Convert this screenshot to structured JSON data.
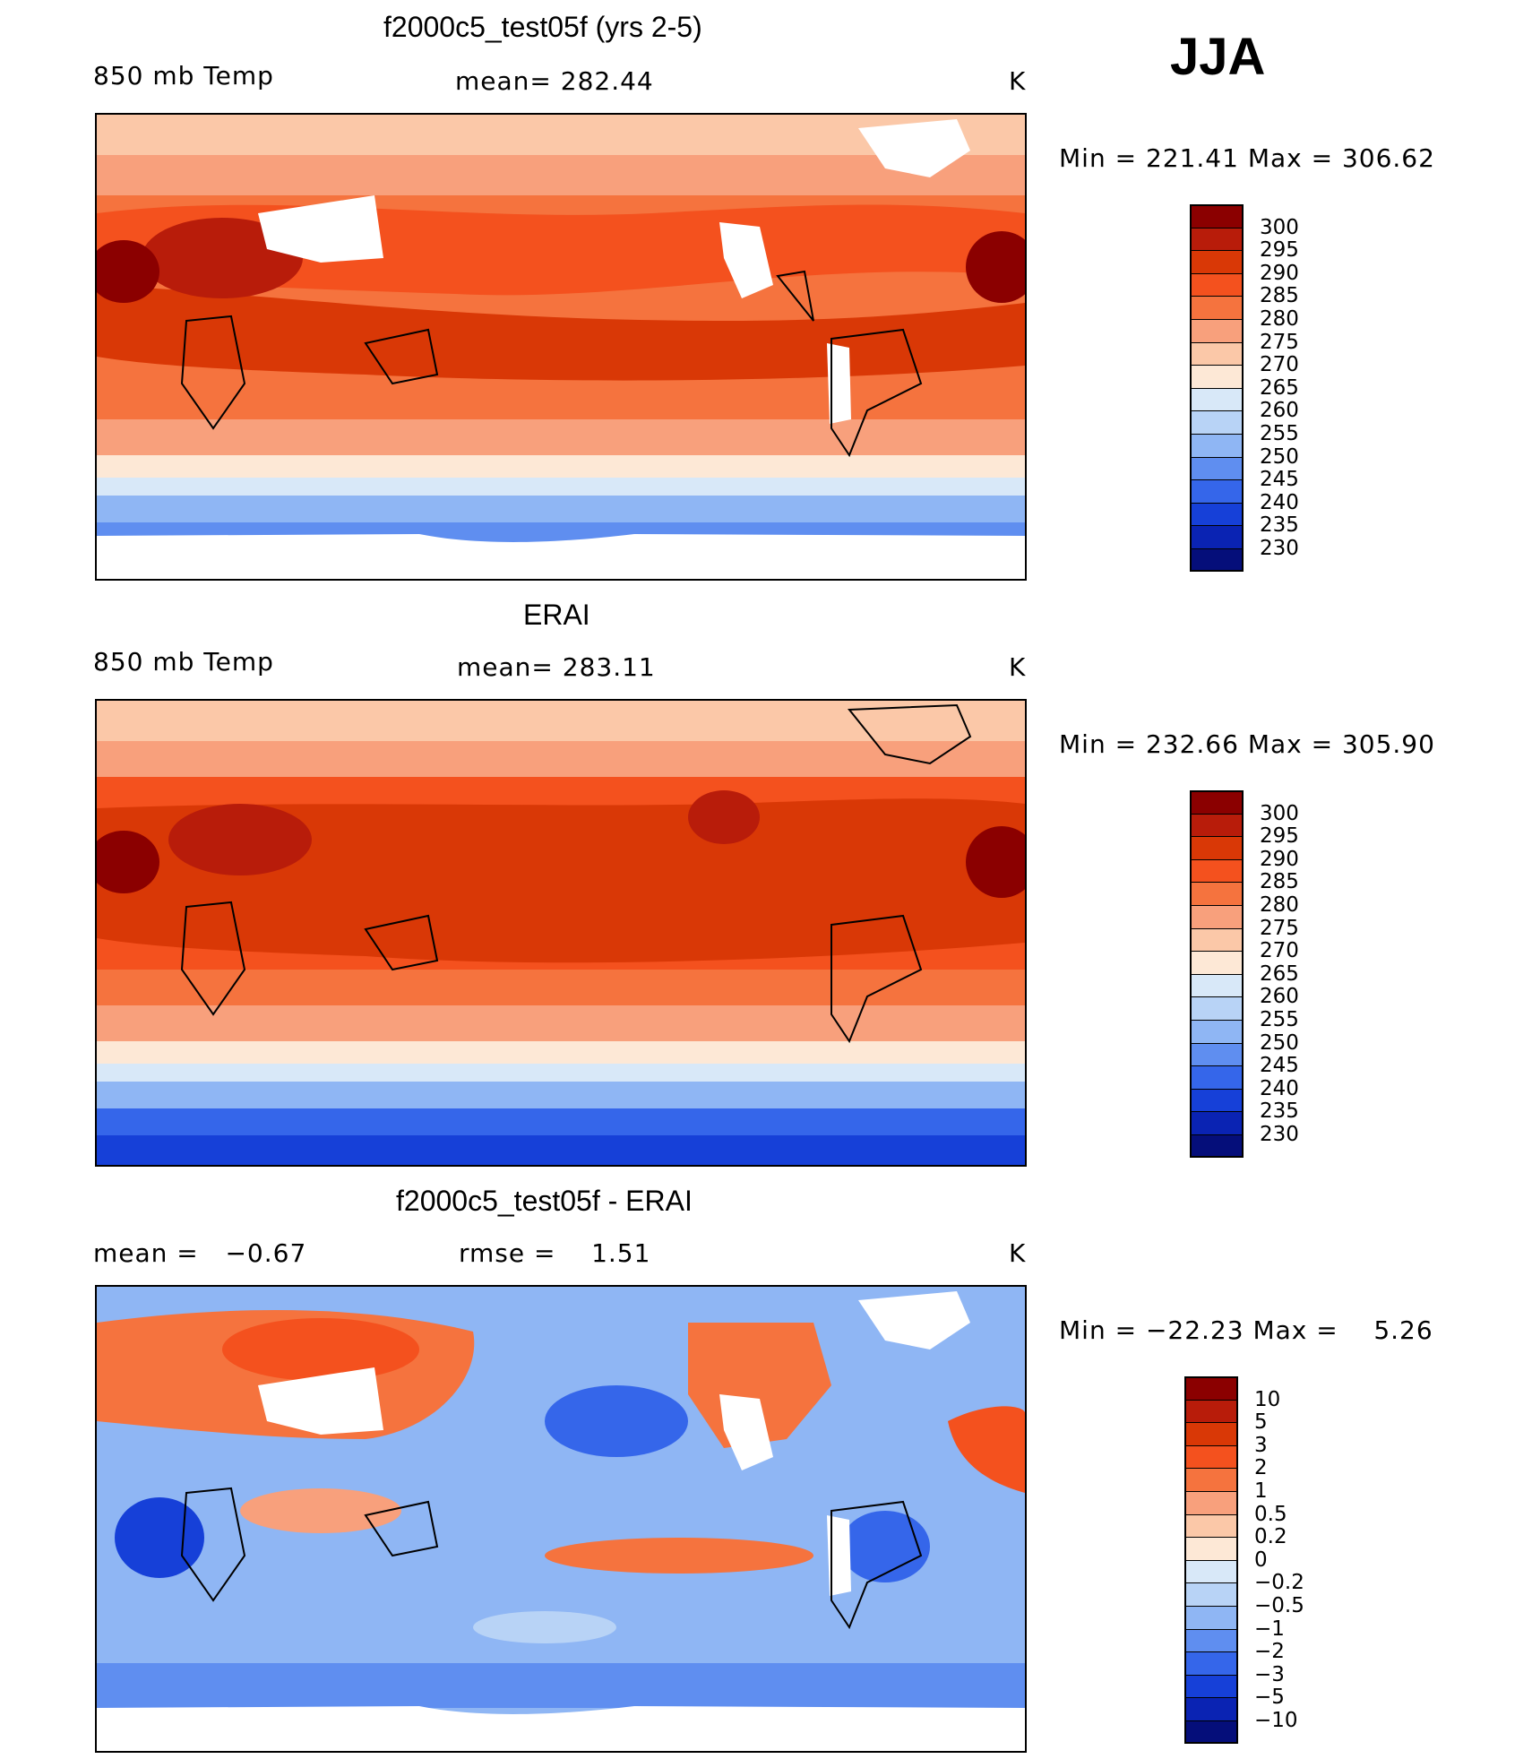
{
  "season": "JJA",
  "panels": [
    {
      "id": "model",
      "title": "f2000c5_test05f (yrs 2-5)",
      "left_label": "850 mb Temp",
      "center_label": "mean= 282.44",
      "units": "K",
      "range_text": "Min = 221.41 Max = 306.62"
    },
    {
      "id": "obs",
      "title": "ERAI",
      "left_label": "850 mb Temp",
      "center_label": "mean= 283.11",
      "units": "K",
      "range_text": "Min = 232.66 Max = 305.90"
    },
    {
      "id": "diff",
      "title": "f2000c5_test05f - ERAI",
      "left_label": "mean =   −0.67",
      "center_label": "rmse =    1.51",
      "units": "K",
      "range_text": "Min = −22.23 Max =    5.26"
    }
  ],
  "chart_data": [
    {
      "type": "heatmap",
      "title": "f2000c5_test05f (yrs 2-5)",
      "variable": "850 mb Temp",
      "units": "K",
      "mean": 282.44,
      "min": 221.41,
      "max": 306.62,
      "colorbar": {
        "levels": [
          "300",
          "295",
          "290",
          "285",
          "280",
          "275",
          "270",
          "265",
          "260",
          "255",
          "250",
          "245",
          "240",
          "235",
          "230"
        ],
        "colors": [
          "#8b0000",
          "#b81c0a",
          "#d93806",
          "#f4511e",
          "#f5733e",
          "#f8a07c",
          "#fbc8a8",
          "#fde8d6",
          "#d8e8f8",
          "#b8d3f6",
          "#8fb6f4",
          "#5f8ef0",
          "#3566ea",
          "#1640d8",
          "#0a23b3",
          "#050e7a"
        ]
      }
    },
    {
      "type": "heatmap",
      "title": "ERAI",
      "variable": "850 mb Temp",
      "units": "K",
      "mean": 283.11,
      "min": 232.66,
      "max": 305.9,
      "colorbar": {
        "levels": [
          "300",
          "295",
          "290",
          "285",
          "280",
          "275",
          "270",
          "265",
          "260",
          "255",
          "250",
          "245",
          "240",
          "235",
          "230"
        ],
        "colors": [
          "#8b0000",
          "#b81c0a",
          "#d93806",
          "#f4511e",
          "#f5733e",
          "#f8a07c",
          "#fbc8a8",
          "#fde8d6",
          "#d8e8f8",
          "#b8d3f6",
          "#8fb6f4",
          "#5f8ef0",
          "#3566ea",
          "#1640d8",
          "#0a23b3",
          "#050e7a"
        ]
      }
    },
    {
      "type": "heatmap",
      "title": "f2000c5_test05f - ERAI",
      "units": "K",
      "mean": -0.67,
      "rmse": 1.51,
      "min": -22.23,
      "max": 5.26,
      "colorbar": {
        "levels": [
          "10",
          "5",
          "3",
          "2",
          "1",
          "0.5",
          "0.2",
          "0",
          "−0.2",
          "−0.5",
          "−1",
          "−2",
          "−3",
          "−5",
          "−10"
        ],
        "colors": [
          "#8b0000",
          "#b81c0a",
          "#d93806",
          "#f4511e",
          "#f5733e",
          "#f8a07c",
          "#fbc8a8",
          "#fde8d6",
          "#d8e8f8",
          "#b8d3f6",
          "#8fb6f4",
          "#5f8ef0",
          "#3566ea",
          "#1640d8",
          "#0a23b3",
          "#050e7a"
        ]
      }
    }
  ]
}
